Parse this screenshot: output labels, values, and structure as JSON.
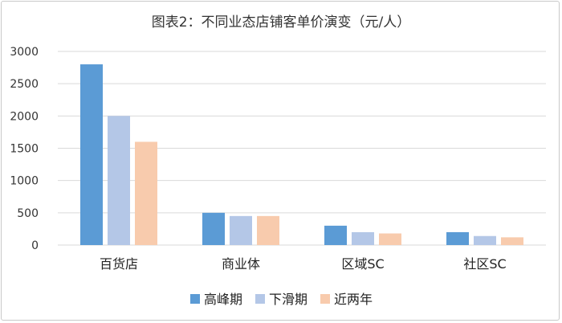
{
  "chart_data": {
    "type": "bar",
    "title": "图表2：不同业态店铺客单价演变（元/人）",
    "categories": [
      "百货店",
      "商业体",
      "区域SC",
      "社区SC"
    ],
    "series": [
      {
        "name": "高峰期",
        "color": "#5b9bd5",
        "values": [
          2800,
          500,
          300,
          200
        ]
      },
      {
        "name": "下滑期",
        "color": "#b4c7e7",
        "values": [
          2000,
          450,
          200,
          140
        ]
      },
      {
        "name": "近两年",
        "color": "#f8cbad",
        "values": [
          1600,
          450,
          180,
          120
        ]
      }
    ],
    "ylim": [
      0,
      3000
    ],
    "yticks": [
      0,
      500,
      1000,
      1500,
      2000,
      2500,
      3000
    ],
    "grid": true,
    "legend_position": "bottom"
  }
}
